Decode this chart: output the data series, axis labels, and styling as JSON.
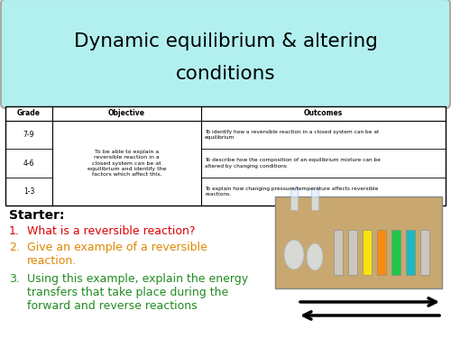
{
  "title_line1": "Dynamic equilibrium & altering",
  "title_line2": "conditions",
  "title_bg": "#b2f0f0",
  "title_border": "#aaaaaa",
  "bg_color": "#ffffff",
  "table_objective_text": "To be able to explain a\nreversible reaction in a\nclosed system can be at\nequilibrium and identify the\nfactors which affect this.",
  "table_outcomes": [
    "To identify how a reversible reaction in a closed system can be at\nequilibrium",
    "To describe how the composition of an equilibrium mixture can be\naltered by changing conditions",
    "To explain how changing pressure/temperature affects reversible\nreactions."
  ],
  "starter_label": "Starter:",
  "q1_num": "1.",
  "q1_text": "What is a reversible reaction?",
  "q1_color": "#dd0000",
  "q2_num": "2.",
  "q2_text": "Give an example of a reversible\nreaction.",
  "q2_color": "#dd8800",
  "q3_num": "3.",
  "q3_text": "Using this example, explain the energy\ntransfers that take place during the\nforward and reverse reactions",
  "q3_color": "#228b22"
}
